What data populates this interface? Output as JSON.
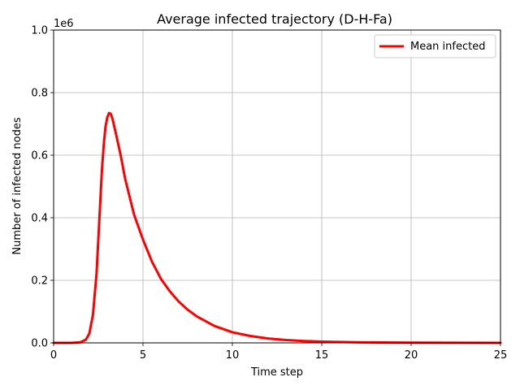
{
  "chart_data": {
    "type": "line",
    "title": "Average infected trajectory (D-H-Fa)",
    "xlabel": "Time step",
    "ylabel": "Number of infected nodes",
    "y_offset_label": "1e6",
    "xlim": [
      0,
      25
    ],
    "ylim": [
      0,
      1000000
    ],
    "x_ticks": [
      0,
      5,
      10,
      15,
      20,
      25
    ],
    "x_tick_labels": [
      "0",
      "5",
      "10",
      "15",
      "20",
      "25"
    ],
    "y_ticks": [
      0,
      200000,
      400000,
      600000,
      800000,
      1000000
    ],
    "y_tick_labels": [
      "0.0",
      "0.2",
      "0.4",
      "0.6",
      "0.8",
      "1.0"
    ],
    "grid": true,
    "legend_position": "top-right",
    "series": [
      {
        "name": "Mean infected",
        "color": "#ff0000",
        "x": [
          0,
          1,
          1.5,
          1.8,
          2.0,
          2.2,
          2.4,
          2.5,
          2.6,
          2.7,
          2.8,
          2.9,
          3.0,
          3.1,
          3.2,
          3.3,
          3.4,
          3.5,
          3.75,
          4.0,
          4.5,
          5.0,
          5.5,
          6.0,
          6.5,
          7.0,
          7.5,
          8.0,
          9.0,
          10.0,
          11.0,
          12.0,
          13.0,
          14.0,
          15.0,
          17.0,
          20.0,
          22.5,
          25.0
        ],
        "y": [
          0,
          0,
          2000,
          10000,
          30000,
          90000,
          220000,
          330000,
          440000,
          550000,
          630000,
          690000,
          720000,
          735000,
          732000,
          715000,
          690000,
          665000,
          600000,
          525000,
          410000,
          330000,
          260000,
          205000,
          165000,
          132000,
          106000,
          85000,
          54000,
          34000,
          22000,
          14000,
          9000,
          6000,
          4000,
          2000,
          800,
          300,
          100
        ]
      }
    ]
  }
}
